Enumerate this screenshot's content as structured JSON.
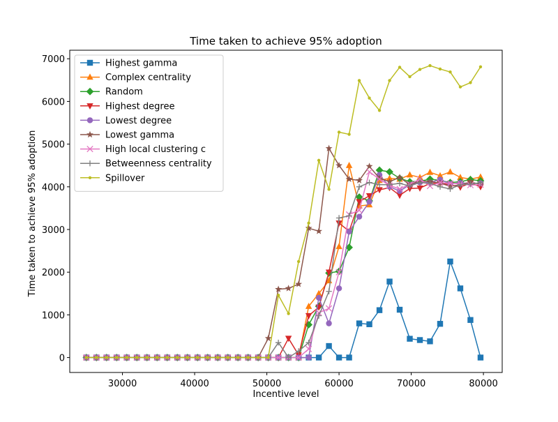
{
  "chart_data": {
    "type": "line",
    "title": "Time taken to achieve 95% adoption",
    "xlabel": "Incentive level",
    "ylabel": "Time taken to achieve 95% adoption",
    "xlim": [
      22700,
      82600
    ],
    "ylim": [
      -350,
      7200
    ],
    "xticks": [
      30000,
      40000,
      50000,
      60000,
      70000,
      80000
    ],
    "yticks": [
      0,
      1000,
      2000,
      3000,
      4000,
      5000,
      6000,
      7000
    ],
    "grid": false,
    "legend_position": "top-left",
    "x": [
      25000,
      26400,
      27800,
      29200,
      30600,
      32000,
      33400,
      34800,
      36200,
      37600,
      39000,
      40400,
      41800,
      43200,
      44600,
      46000,
      47400,
      48800,
      50200,
      51600,
      53000,
      54400,
      55800,
      57200,
      58600,
      60000,
      61400,
      62800,
      64200,
      65600,
      67000,
      68400,
      69800,
      71200,
      72600,
      74000,
      75400,
      76800,
      78200,
      79600
    ],
    "series": [
      {
        "name": "Highest gamma",
        "color": "#1f77b4",
        "marker": "square",
        "values": [
          0,
          0,
          0,
          0,
          0,
          0,
          0,
          0,
          0,
          0,
          0,
          0,
          0,
          0,
          0,
          0,
          0,
          0,
          0,
          0,
          0,
          0,
          0,
          0,
          270,
          0,
          0,
          800,
          780,
          1110,
          1780,
          1120,
          440,
          410,
          380,
          790,
          2250,
          1620,
          880,
          0
        ]
      },
      {
        "name": "Complex centrality",
        "color": "#ff7f0e",
        "marker": "triangle-up",
        "values": [
          0,
          0,
          0,
          0,
          0,
          0,
          0,
          0,
          0,
          0,
          0,
          0,
          0,
          0,
          0,
          0,
          0,
          0,
          0,
          0,
          0,
          0,
          1200,
          1500,
          1800,
          2600,
          4500,
          3550,
          3580,
          4150,
          4200,
          4180,
          4280,
          4220,
          4340,
          4260,
          4350,
          4220,
          4180,
          4230
        ]
      },
      {
        "name": "Random",
        "color": "#2ca02c",
        "marker": "diamond",
        "values": [
          0,
          0,
          0,
          0,
          0,
          0,
          0,
          0,
          0,
          0,
          0,
          0,
          0,
          0,
          0,
          0,
          0,
          0,
          0,
          0,
          0,
          0,
          770,
          1200,
          1980,
          2020,
          2580,
          3760,
          3670,
          4390,
          4350,
          4200,
          4120,
          4130,
          4180,
          4150,
          4100,
          4120,
          4170,
          4140
        ]
      },
      {
        "name": "Highest degree",
        "color": "#d62728",
        "marker": "triangle-down",
        "values": [
          0,
          0,
          0,
          0,
          0,
          0,
          0,
          0,
          0,
          0,
          0,
          0,
          0,
          0,
          0,
          0,
          0,
          0,
          0,
          0,
          450,
          60,
          980,
          1180,
          2000,
          3150,
          2960,
          3650,
          3790,
          3930,
          3980,
          3800,
          3960,
          3970,
          4080,
          4080,
          4050,
          3990,
          4090,
          4000
        ]
      },
      {
        "name": "Lowest degree",
        "color": "#9467bd",
        "marker": "circle",
        "values": [
          0,
          0,
          0,
          0,
          0,
          0,
          0,
          0,
          0,
          0,
          0,
          0,
          0,
          0,
          0,
          0,
          0,
          0,
          0,
          0,
          0,
          0,
          0,
          1400,
          800,
          1620,
          2950,
          3300,
          3650,
          4280,
          4000,
          3900,
          4050,
          4100,
          4100,
          4170,
          4070,
          4090,
          4080,
          4080
        ]
      },
      {
        "name": "Lowest gamma",
        "color": "#8c564b",
        "marker": "star",
        "values": [
          0,
          0,
          0,
          0,
          0,
          0,
          0,
          0,
          0,
          0,
          0,
          0,
          0,
          0,
          0,
          0,
          0,
          0,
          450,
          1600,
          1620,
          1720,
          3030,
          2960,
          4900,
          4500,
          4180,
          4150,
          4480,
          4200,
          4120,
          4220,
          4050,
          4140,
          4120,
          4090,
          4010,
          4050,
          4110,
          4060
        ]
      },
      {
        "name": "High local clustering c",
        "color": "#e377c2",
        "marker": "x",
        "values": [
          0,
          0,
          0,
          0,
          0,
          0,
          0,
          0,
          0,
          0,
          0,
          0,
          0,
          0,
          0,
          0,
          0,
          0,
          0,
          0,
          0,
          0,
          200,
          1050,
          1150,
          2000,
          3350,
          3450,
          4350,
          4180,
          4030,
          3950,
          4060,
          4180,
          4020,
          4100,
          4080,
          4070,
          4040,
          4050
        ]
      },
      {
        "name": "Betweenness centrality",
        "color": "#7f7f7f",
        "marker": "plus",
        "values": [
          0,
          0,
          0,
          0,
          0,
          0,
          0,
          0,
          0,
          0,
          0,
          0,
          0,
          0,
          0,
          0,
          0,
          0,
          0,
          350,
          0,
          150,
          350,
          980,
          1550,
          3270,
          3320,
          4000,
          4100,
          4050,
          4050,
          4080,
          4020,
          4100,
          4080,
          4000,
          3950,
          4050,
          4060,
          4100
        ]
      },
      {
        "name": "Spillover",
        "color": "#bcbd22",
        "marker": "point",
        "values": [
          0,
          0,
          0,
          0,
          0,
          0,
          0,
          0,
          0,
          0,
          0,
          0,
          0,
          0,
          0,
          0,
          0,
          0,
          0,
          1460,
          1030,
          2250,
          3150,
          4620,
          3940,
          5280,
          5230,
          6490,
          6080,
          5790,
          6490,
          6800,
          6580,
          6750,
          6840,
          6760,
          6690,
          6340,
          6440,
          6810
        ]
      }
    ]
  }
}
